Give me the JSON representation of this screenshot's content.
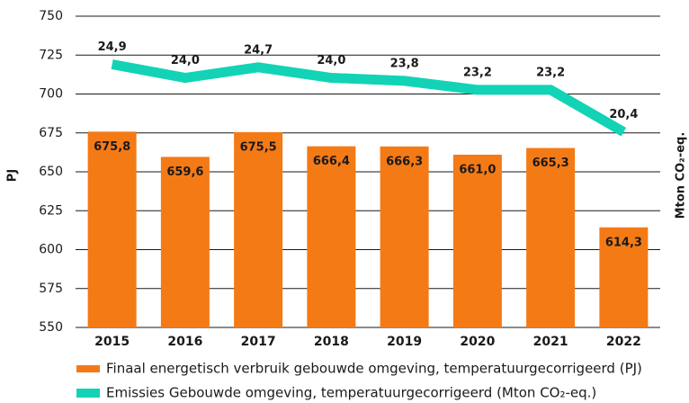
{
  "chart_data": {
    "type": "bar_line",
    "categories": [
      "2015",
      "2016",
      "2017",
      "2018",
      "2019",
      "2020",
      "2021",
      "2022"
    ],
    "ylabel": "PJ",
    "y2label": "Mton CO₂-eq.",
    "ylim": [
      550,
      750
    ],
    "yticks": [
      550,
      575,
      600,
      625,
      650,
      675,
      700,
      725,
      750
    ],
    "y2lim": [
      7.4,
      28.1
    ],
    "grid": true,
    "legend": "bottom",
    "series": [
      {
        "name": "Finaal energetisch verbruik gebouwde omgeving, temperatuurgecorrigeerd (PJ)",
        "type": "bar",
        "color": "#f47a16",
        "values": [
          675.8,
          659.6,
          675.5,
          666.4,
          666.3,
          661.0,
          665.3,
          614.3
        ],
        "value_labels": [
          "675,8",
          "659,6",
          "675,5",
          "666,4",
          "666,3",
          "661,0",
          "665,3",
          "614,3"
        ]
      },
      {
        "name": "Emissies Gebouwde omgeving, temperatuurgecorrigeerd (Mton CO₂-eq.)",
        "type": "line",
        "axis": "y2",
        "color": "#12d3b5",
        "values": [
          24.9,
          24.0,
          24.7,
          24.0,
          23.8,
          23.2,
          23.2,
          20.4
        ],
        "value_labels": [
          "24,9",
          "24,0",
          "24,7",
          "24,0",
          "23,8",
          "23,2",
          "23,2",
          "20,4"
        ]
      }
    ]
  }
}
